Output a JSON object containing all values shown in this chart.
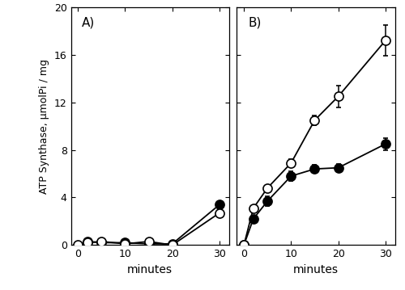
{
  "panel_A": {
    "label": "A)",
    "x": [
      0,
      2,
      5,
      10,
      15,
      20,
      30
    ],
    "light_y": [
      0.0,
      0.2,
      0.3,
      0.1,
      0.3,
      0.0,
      2.7
    ],
    "heavy_y": [
      -0.1,
      0.3,
      0.2,
      0.2,
      0.1,
      0.1,
      3.4
    ],
    "light_yerr": [
      0.05,
      0.1,
      0.1,
      0.1,
      0.1,
      0.1,
      0.15
    ],
    "heavy_yerr": [
      0.05,
      0.1,
      0.1,
      0.1,
      0.1,
      0.1,
      0.15
    ],
    "ylim": [
      0,
      20
    ],
    "yticks": [
      0,
      4,
      8,
      12,
      16,
      20
    ]
  },
  "panel_B": {
    "label": "B)",
    "x": [
      0,
      2,
      5,
      10,
      15,
      20,
      30
    ],
    "light_y": [
      0.0,
      3.1,
      4.8,
      6.9,
      10.5,
      12.5,
      17.2
    ],
    "heavy_y": [
      0.0,
      2.2,
      3.7,
      5.8,
      6.4,
      6.5,
      8.5
    ],
    "light_yerr": [
      0.05,
      0.25,
      0.25,
      0.3,
      0.4,
      0.9,
      1.3
    ],
    "heavy_yerr": [
      0.05,
      0.3,
      0.4,
      0.4,
      0.35,
      0.35,
      0.5
    ],
    "ylim": [
      0,
      20
    ],
    "yticks": [
      0,
      4,
      8,
      12,
      16,
      20
    ]
  },
  "ylabel": "ATP Synthase, μmolPi / mg",
  "xlabel": "minutes",
  "marker_size": 8,
  "line_width": 1.3,
  "cap_size": 2.5,
  "elinewidth": 1.1,
  "marker_edge_width": 1.2
}
